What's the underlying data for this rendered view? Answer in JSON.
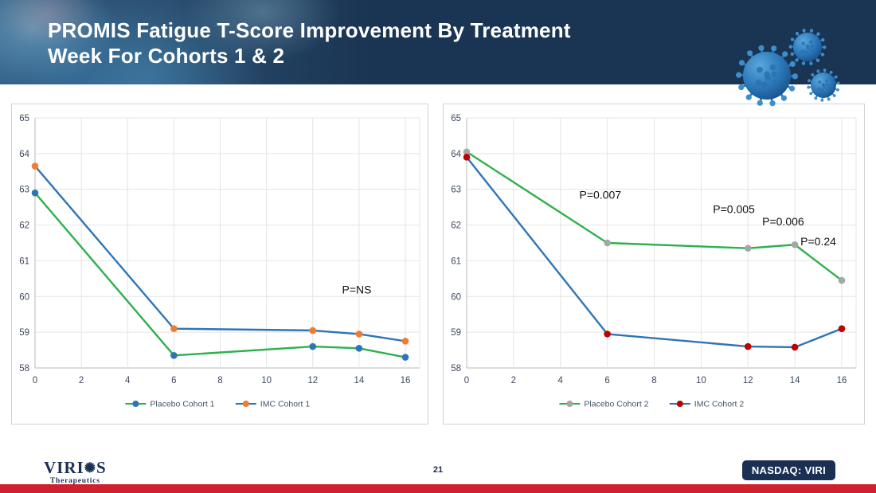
{
  "header": {
    "title_line1": "PROMIS Fatigue T-Score Improvement By Treatment",
    "title_line2": "Week For Cohorts 1 & 2"
  },
  "footer": {
    "logo": {
      "prefix": "VIRI",
      "icon": "✺",
      "suffix": "S",
      "subtitle": "Therapeutics"
    },
    "page_number": "21",
    "nasdaq_badge": "NASDAQ: VIRI"
  },
  "colors": {
    "header_bg": "#1a3553",
    "accent_red": "#cf202e",
    "badge_bg": "#1b2f52",
    "green_line": "#2db14c",
    "blue_line": "#2e75b6",
    "orange_marker": "#ed7d31",
    "red_marker": "#c00000",
    "gray_marker": "#a6a6a6",
    "blue_marker": "#2e75b6",
    "grid": "#e4e4e4",
    "axis": "#b9b9b9"
  },
  "chart_data": [
    {
      "type": "line",
      "title": "",
      "xlabel": "",
      "ylabel": "",
      "x": [
        0,
        6,
        12,
        14,
        16
      ],
      "xticks": [
        0,
        2,
        4,
        6,
        8,
        10,
        12,
        14,
        16
      ],
      "ylim": [
        58,
        65
      ],
      "yticks": [
        58,
        59,
        60,
        61,
        62,
        63,
        64,
        65
      ],
      "grid": true,
      "legend_position": "bottom",
      "series": [
        {
          "name": "Placebo Cohort 1",
          "values": [
            62.9,
            58.35,
            58.6,
            58.55,
            58.3
          ],
          "line_color": "#2db14c",
          "marker_color": "#2e75b6"
        },
        {
          "name": "IMC Cohort 1",
          "values": [
            63.65,
            59.1,
            59.05,
            58.95,
            58.75
          ],
          "line_color": "#2e75b6",
          "marker_color": "#ed7d31"
        }
      ],
      "annotations": [
        {
          "label": "P=NS",
          "x": 13.9,
          "y": 60.2
        }
      ]
    },
    {
      "type": "line",
      "title": "",
      "xlabel": "",
      "ylabel": "",
      "x": [
        0,
        6,
        12,
        14,
        16
      ],
      "xticks": [
        0,
        2,
        4,
        6,
        8,
        10,
        12,
        14,
        16
      ],
      "ylim": [
        58,
        65
      ],
      "yticks": [
        58,
        59,
        60,
        61,
        62,
        63,
        64,
        65
      ],
      "grid": true,
      "legend_position": "bottom",
      "series": [
        {
          "name": "Placebo Cohort 2",
          "values": [
            64.05,
            61.5,
            61.35,
            61.45,
            60.45
          ],
          "line_color": "#2db14c",
          "marker_color": "#a6a6a6"
        },
        {
          "name": "IMC Cohort 2",
          "values": [
            63.9,
            58.95,
            58.6,
            58.58,
            59.1
          ],
          "line_color": "#2e75b6",
          "marker_color": "#c00000"
        }
      ],
      "annotations": [
        {
          "label": "P=0.007",
          "x": 5.7,
          "y": 62.85
        },
        {
          "label": "P=0.005",
          "x": 11.4,
          "y": 62.45
        },
        {
          "label": "P=0.006",
          "x": 13.5,
          "y": 62.1
        },
        {
          "label": "P=0.24",
          "x": 15.0,
          "y": 61.55
        }
      ]
    }
  ]
}
